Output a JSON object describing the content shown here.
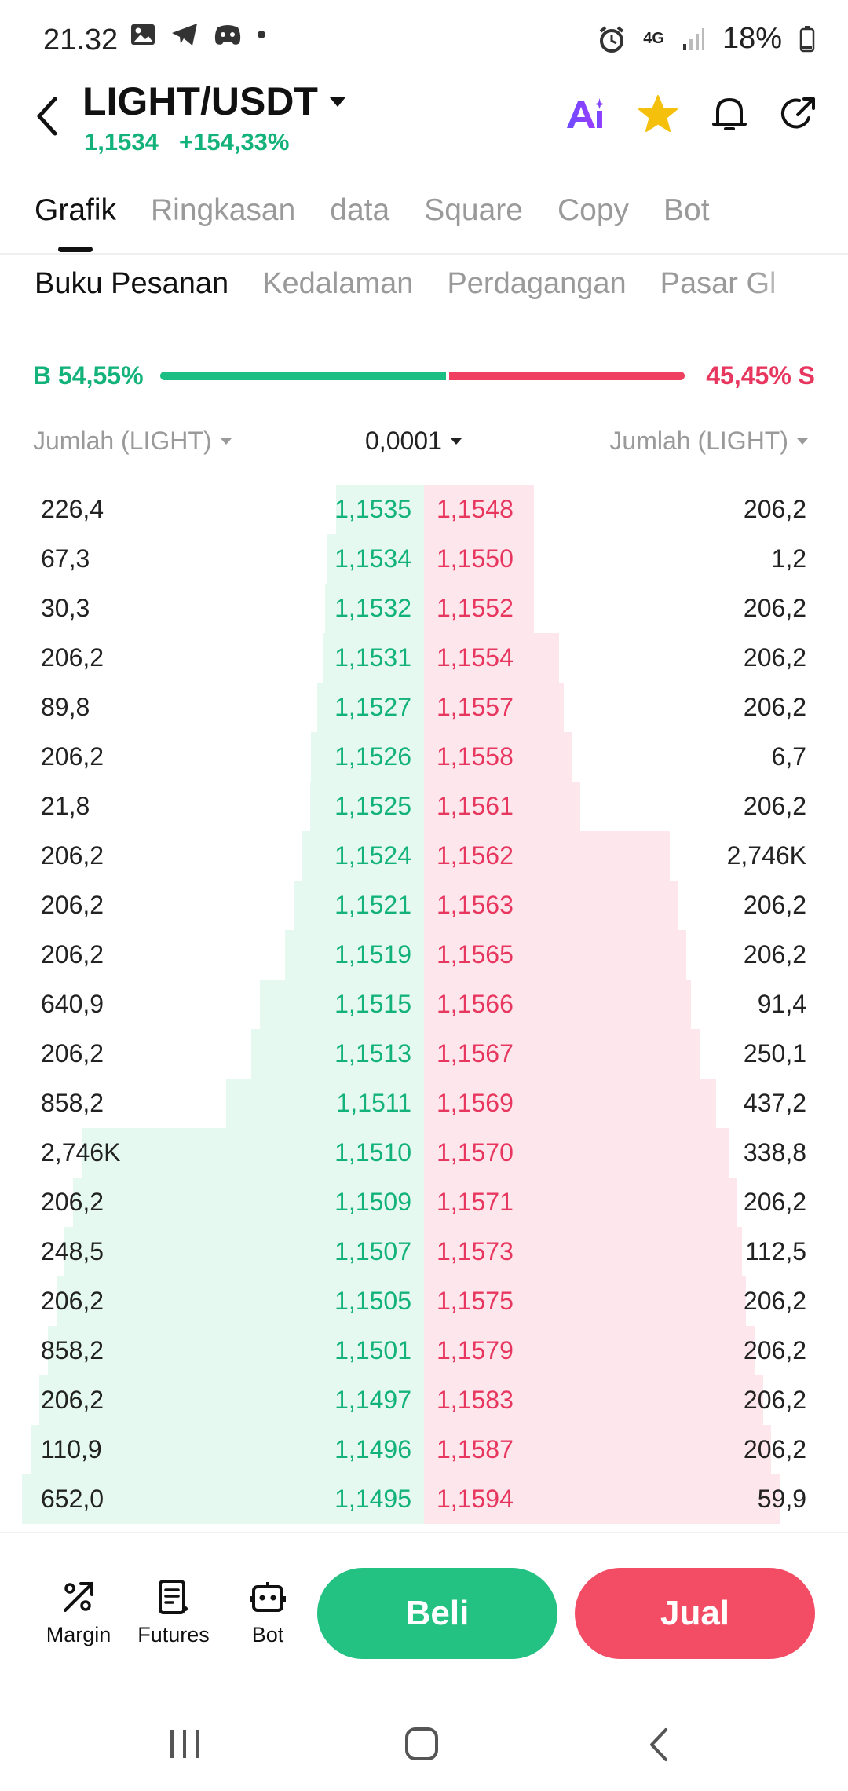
{
  "status_bar": {
    "time": "21.32",
    "network": "4G",
    "battery": "18%"
  },
  "header": {
    "pair": "LIGHT/USDT",
    "price": "1,1534",
    "change": "+154,33%",
    "icons": [
      "ai-icon",
      "star-icon",
      "bell-icon",
      "share-icon"
    ]
  },
  "tabs": [
    "Grafik",
    "Ringkasan",
    "data",
    "Square",
    "Copy",
    "Bot"
  ],
  "active_tab": "Grafik",
  "subtabs": [
    "Buku Pesanan",
    "Kedalaman",
    "Perdagangan",
    "Pasar Gl"
  ],
  "active_subtab": "Buku Pesanan",
  "ratio": {
    "buy_label": "B 54,55%",
    "sell_label": "45,45% S",
    "buy_fraction": 0.5455
  },
  "controls": {
    "left": "Jumlah (LIGHT)",
    "precision": "0,0001",
    "right": "Jumlah (LIGHT)"
  },
  "order_book": {
    "rows": [
      {
        "bid_qty": "226,4",
        "bid_price": "1,1535",
        "ask_price": "1,1548",
        "ask_qty": "206,2",
        "bid_depth": 0.0,
        "ask_depth": 0.0
      },
      {
        "bid_qty": "67,3",
        "bid_price": "1,1534",
        "ask_price": "1,1550",
        "ask_qty": "1,2",
        "bid_depth": 0.02,
        "ask_depth": 0.0
      },
      {
        "bid_qty": "30,3",
        "bid_price": "1,1532",
        "ask_price": "1,1552",
        "ask_qty": "206,2",
        "bid_depth": 0.025,
        "ask_depth": 0.0
      },
      {
        "bid_qty": "206,2",
        "bid_price": "1,1531",
        "ask_price": "1,1554",
        "ask_qty": "206,2",
        "bid_depth": 0.03,
        "ask_depth": 0.06
      },
      {
        "bid_qty": "89,8",
        "bid_price": "1,1527",
        "ask_price": "1,1557",
        "ask_qty": "206,2",
        "bid_depth": 0.045,
        "ask_depth": 0.07
      },
      {
        "bid_qty": "206,2",
        "bid_price": "1,1526",
        "ask_price": "1,1558",
        "ask_qty": "6,7",
        "bid_depth": 0.06,
        "ask_depth": 0.09
      },
      {
        "bid_qty": "21,8",
        "bid_price": "1,1525",
        "ask_price": "1,1561",
        "ask_qty": "206,2",
        "bid_depth": 0.062,
        "ask_depth": 0.11
      },
      {
        "bid_qty": "206,2",
        "bid_price": "1,1524",
        "ask_price": "1,1562",
        "ask_qty": "2,746K",
        "bid_depth": 0.08,
        "ask_depth": 0.32
      },
      {
        "bid_qty": "206,2",
        "bid_price": "1,1521",
        "ask_price": "1,1563",
        "ask_qty": "206,2",
        "bid_depth": 0.1,
        "ask_depth": 0.34
      },
      {
        "bid_qty": "206,2",
        "bid_price": "1,1519",
        "ask_price": "1,1565",
        "ask_qty": "206,2",
        "bid_depth": 0.12,
        "ask_depth": 0.36
      },
      {
        "bid_qty": "640,9",
        "bid_price": "1,1515",
        "ask_price": "1,1566",
        "ask_qty": "91,4",
        "bid_depth": 0.18,
        "ask_depth": 0.37
      },
      {
        "bid_qty": "206,2",
        "bid_price": "1,1513",
        "ask_price": "1,1567",
        "ask_qty": "250,1",
        "bid_depth": 0.2,
        "ask_depth": 0.39
      },
      {
        "bid_qty": "858,2",
        "bid_price": "1,1511",
        "ask_price": "1,1569",
        "ask_qty": "437,2",
        "bid_depth": 0.26,
        "ask_depth": 0.43
      },
      {
        "bid_qty": "2,746K",
        "bid_price": "1,1510",
        "ask_price": "1,1570",
        "ask_qty": "338,8",
        "bid_depth": 0.6,
        "ask_depth": 0.46
      },
      {
        "bid_qty": "206,2",
        "bid_price": "1,1509",
        "ask_price": "1,1571",
        "ask_qty": "206,2",
        "bid_depth": 0.62,
        "ask_depth": 0.48
      },
      {
        "bid_qty": "248,5",
        "bid_price": "1,1507",
        "ask_price": "1,1573",
        "ask_qty": "112,5",
        "bid_depth": 0.64,
        "ask_depth": 0.49
      },
      {
        "bid_qty": "206,2",
        "bid_price": "1,1505",
        "ask_price": "1,1575",
        "ask_qty": "206,2",
        "bid_depth": 0.66,
        "ask_depth": 0.5
      },
      {
        "bid_qty": "858,2",
        "bid_price": "1,1501",
        "ask_price": "1,1579",
        "ask_qty": "206,2",
        "bid_depth": 0.68,
        "ask_depth": 0.52
      },
      {
        "bid_qty": "206,2",
        "bid_price": "1,1497",
        "ask_price": "1,1583",
        "ask_qty": "206,2",
        "bid_depth": 0.7,
        "ask_depth": 0.54
      },
      {
        "bid_qty": "110,9",
        "bid_price": "1,1496",
        "ask_price": "1,1587",
        "ask_qty": "206,2",
        "bid_depth": 0.72,
        "ask_depth": 0.56
      },
      {
        "bid_qty": "652,0",
        "bid_price": "1,1495",
        "ask_price": "1,1594",
        "ask_qty": "59,9",
        "bid_depth": 0.74,
        "ask_depth": 0.58
      }
    ]
  },
  "bottom_bar": {
    "margin_label": "Margin",
    "futures_label": "Futures",
    "bot_label": "Bot",
    "buy_label": "Beli",
    "sell_label": "Jual"
  },
  "colors": {
    "buy": "#13b27a",
    "sell": "#e8375f",
    "buy_button": "#23c182",
    "sell_button": "#f34d66"
  }
}
